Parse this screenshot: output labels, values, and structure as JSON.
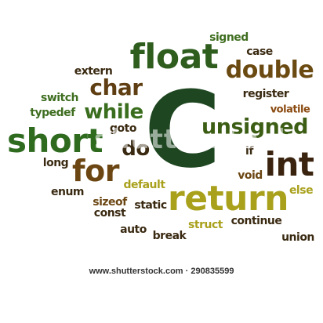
{
  "cloud": {
    "words": [
      {
        "text": "C",
        "color": "#1e4620"
      },
      {
        "text": "float",
        "color": "#2e5d1e"
      },
      {
        "text": "short",
        "color": "#2f6b1f"
      },
      {
        "text": "return",
        "color": "#a9a11c"
      },
      {
        "text": "int",
        "color": "#3a2410"
      },
      {
        "text": "unsigned",
        "color": "#3c5d14"
      },
      {
        "text": "double",
        "color": "#6b4a12"
      },
      {
        "text": "for",
        "color": "#6b4612"
      },
      {
        "text": "while",
        "color": "#3a6e1e"
      },
      {
        "text": "char",
        "color": "#5e3e12"
      },
      {
        "text": "do",
        "color": "#3a2a12"
      },
      {
        "text": "signed",
        "color": "#3f6e20"
      },
      {
        "text": "case",
        "color": "#3a2a12"
      },
      {
        "text": "extern",
        "color": "#3a2a12"
      },
      {
        "text": "register",
        "color": "#3a2a12"
      },
      {
        "text": "volatile",
        "color": "#8a4a10"
      },
      {
        "text": "switch",
        "color": "#3f6e20"
      },
      {
        "text": "typedef",
        "color": "#3f6e20"
      },
      {
        "text": "goto",
        "color": "#3a2a12"
      },
      {
        "text": "if",
        "color": "#3a2a12"
      },
      {
        "text": "long",
        "color": "#3a2a12"
      },
      {
        "text": "void",
        "color": "#6b4612"
      },
      {
        "text": "default",
        "color": "#a9a11c"
      },
      {
        "text": "enum",
        "color": "#3a2a12"
      },
      {
        "text": "else",
        "color": "#a9a11c"
      },
      {
        "text": "sizeof",
        "color": "#6b4612"
      },
      {
        "text": "const",
        "color": "#3a2a12"
      },
      {
        "text": "static",
        "color": "#3a2a12"
      },
      {
        "text": "struct",
        "color": "#a9a11c"
      },
      {
        "text": "continue",
        "color": "#3a2a12"
      },
      {
        "text": "auto",
        "color": "#3a2a12"
      },
      {
        "text": "break",
        "color": "#3a2a12"
      },
      {
        "text": "union",
        "color": "#3a2a12"
      }
    ]
  },
  "watermark": "shutterstock",
  "footer": {
    "site": "www.shutterstock.com",
    "separator": "·",
    "image_number": "290835599"
  }
}
